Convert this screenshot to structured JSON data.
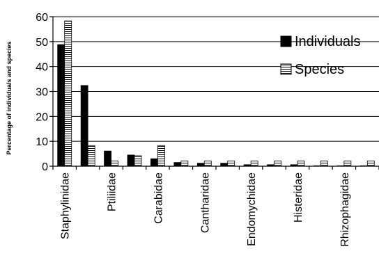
{
  "chart_data": {
    "type": "bar",
    "title": "",
    "xlabel": "",
    "ylabel": "Percentage of individuals and species",
    "ylim": [
      0,
      60
    ],
    "yticks": [
      0,
      10,
      20,
      30,
      40,
      50,
      60
    ],
    "grid": true,
    "legend_position": "top-right",
    "categories": [
      "Staphylinidae",
      "",
      "Ptiliidae",
      "",
      "Carabidae",
      "",
      "Cantharidae",
      "",
      "Endomychidae",
      "",
      "Histeridae",
      "",
      "Rhizophagidae",
      ""
    ],
    "series": [
      {
        "name": "Individuals",
        "color": "#000000",
        "pattern": "solid",
        "values": [
          48.8,
          32.4,
          6.1,
          4.5,
          3.0,
          1.5,
          1.2,
          1.2,
          0.6,
          0.6,
          0.6,
          0.2,
          0.2,
          0.2
        ]
      },
      {
        "name": "Species",
        "color": "#ffffff",
        "pattern": "horizontal-stripes",
        "values": [
          58.3,
          8.3,
          2.1,
          4.2,
          8.3,
          2.1,
          2.1,
          2.1,
          2.1,
          2.1,
          2.1,
          2.1,
          2.1,
          2.1
        ]
      }
    ]
  }
}
